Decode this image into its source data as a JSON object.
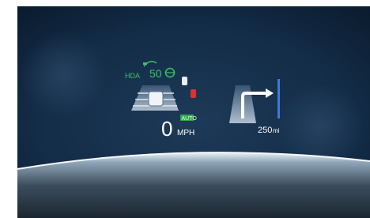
{
  "hud": {
    "assist_label": "HDA",
    "speed_limit": 50,
    "speed": 0,
    "speed_unit": "MPH",
    "mode": "AUTO",
    "distance": 250,
    "distance_unit": "mi"
  }
}
